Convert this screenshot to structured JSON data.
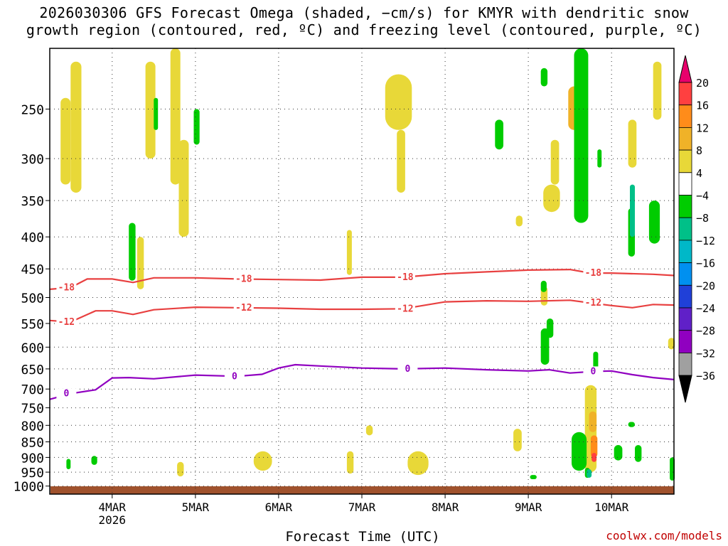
{
  "title": "2026030306 GFS Forecast Omega (shaded, −cm/s) for KMYR with dendritic snow\ngrowth region (contoured, red, ºC) and freezing level (contoured, purple, ºC)",
  "credit": "coolwx.com/models",
  "chart_data": {
    "type": "heatmap",
    "title": "2026030306 GFS Forecast Omega (shaded, −cm/s) for KMYR with dendritic snow growth region (contoured, red, ºC) and freezing level (contoured, purple, ºC)",
    "xlabel": "Forecast Time (UTC)",
    "ylabel": "",
    "x_ticks": [
      "4MAR",
      "5MAR",
      "6MAR",
      "7MAR",
      "8MAR",
      "9MAR",
      "10MAR"
    ],
    "x_tick_sublabel": "2026",
    "x_range_days": [
      3.25,
      10.75
    ],
    "y_ticks": [
      250,
      300,
      350,
      400,
      450,
      500,
      550,
      600,
      650,
      700,
      750,
      800,
      850,
      900,
      950,
      1000
    ],
    "y_range_hpa": [
      1030,
      200
    ],
    "grid": "dotted",
    "colorbar": {
      "ticks": [
        "20",
        "16",
        "12",
        "8",
        "4",
        "−4",
        "−8",
        "−12",
        "−16",
        "−20",
        "−24",
        "−28",
        "−32",
        "−36"
      ],
      "colors": [
        "#e8006c",
        "#ff4040",
        "#ff8c1a",
        "#f0b228",
        "#e8d838",
        "#ffffff",
        "#00cc00",
        "#00c088",
        "#00b8c8",
        "#0090f0",
        "#2040d8",
        "#6020c8",
        "#9000c0",
        "#a0a0a0",
        "#000000"
      ]
    },
    "contours": {
      "dgz_minus18": {
        "label": "-18",
        "color": "#e84040",
        "points": [
          [
            3.25,
            485
          ],
          [
            3.5,
            482
          ],
          [
            3.7,
            467
          ],
          [
            4.0,
            467
          ],
          [
            4.25,
            473
          ],
          [
            4.5,
            465
          ],
          [
            5.0,
            465
          ],
          [
            5.5,
            467
          ],
          [
            6.0,
            468
          ],
          [
            6.5,
            469
          ],
          [
            7.0,
            464
          ],
          [
            7.5,
            464
          ],
          [
            8.0,
            458
          ],
          [
            8.5,
            455
          ],
          [
            9.0,
            452
          ],
          [
            9.5,
            451
          ],
          [
            9.75,
            457
          ],
          [
            10.0,
            457
          ],
          [
            10.5,
            459
          ],
          [
            10.75,
            461
          ]
        ]
      },
      "dgz_minus12": {
        "label": "-12",
        "color": "#e84040",
        "points": [
          [
            3.25,
            544
          ],
          [
            3.5,
            547
          ],
          [
            3.8,
            525
          ],
          [
            4.0,
            525
          ],
          [
            4.25,
            532
          ],
          [
            4.5,
            523
          ],
          [
            5.0,
            518
          ],
          [
            5.5,
            519
          ],
          [
            6.0,
            520
          ],
          [
            6.5,
            522
          ],
          [
            7.0,
            522
          ],
          [
            7.5,
            521
          ],
          [
            8.0,
            508
          ],
          [
            8.5,
            506
          ],
          [
            9.0,
            507
          ],
          [
            9.5,
            505
          ],
          [
            9.75,
            510
          ],
          [
            10.0,
            515
          ],
          [
            10.25,
            519
          ],
          [
            10.5,
            513
          ],
          [
            10.75,
            514
          ]
        ]
      },
      "freezing_level": {
        "label": "0",
        "color": "#9000c0",
        "points": [
          [
            3.25,
            727
          ],
          [
            3.5,
            712
          ],
          [
            3.8,
            702
          ],
          [
            4.0,
            672
          ],
          [
            4.2,
            671
          ],
          [
            4.5,
            674
          ],
          [
            5.0,
            665
          ],
          [
            5.5,
            668
          ],
          [
            5.8,
            663
          ],
          [
            6.0,
            648
          ],
          [
            6.2,
            640
          ],
          [
            6.5,
            643
          ],
          [
            7.0,
            648
          ],
          [
            7.5,
            650
          ],
          [
            8.0,
            648
          ],
          [
            8.5,
            652
          ],
          [
            9.0,
            655
          ],
          [
            9.25,
            652
          ],
          [
            9.5,
            660
          ],
          [
            9.8,
            656
          ],
          [
            10.0,
            655
          ],
          [
            10.25,
            664
          ],
          [
            10.5,
            671
          ],
          [
            10.75,
            676
          ]
        ]
      }
    },
    "shaded_regions": [
      {
        "level": "4",
        "t0": 3.38,
        "t1": 3.5,
        "p0": 240,
        "p1": 330
      },
      {
        "level": "4",
        "t0": 3.5,
        "t1": 3.63,
        "p0": 210,
        "p1": 340
      },
      {
        "level": "4",
        "t0": 4.4,
        "t1": 4.52,
        "p0": 210,
        "p1": 300
      },
      {
        "level": "4",
        "t0": 4.7,
        "t1": 4.82,
        "p0": 200,
        "p1": 330
      },
      {
        "level": "4",
        "t0": 4.8,
        "t1": 4.92,
        "p0": 280,
        "p1": 400
      },
      {
        "level": "4",
        "t0": 4.3,
        "t1": 4.38,
        "p0": 400,
        "p1": 485
      },
      {
        "level": "4",
        "t0": 6.82,
        "t1": 6.88,
        "p0": 390,
        "p1": 460
      },
      {
        "level": "4",
        "t0": 7.28,
        "t1": 7.6,
        "p0": 220,
        "p1": 270
      },
      {
        "level": "4",
        "t0": 7.42,
        "t1": 7.52,
        "p0": 270,
        "p1": 340
      },
      {
        "level": "4",
        "t0": 9.18,
        "t1": 9.38,
        "p0": 330,
        "p1": 365
      },
      {
        "level": "4",
        "t0": 9.27,
        "t1": 9.37,
        "p0": 280,
        "p1": 330
      },
      {
        "level": "4",
        "t0": 8.85,
        "t1": 8.93,
        "p0": 370,
        "p1": 385
      },
      {
        "level": "4",
        "t0": 10.2,
        "t1": 10.3,
        "p0": 260,
        "p1": 310
      },
      {
        "level": "4",
        "t0": 10.5,
        "t1": 10.6,
        "p0": 210,
        "p1": 260
      },
      {
        "level": "4",
        "t0": 10.68,
        "t1": 10.76,
        "p0": 580,
        "p1": 605
      },
      {
        "level": "4",
        "t0": 5.7,
        "t1": 5.92,
        "p0": 880,
        "p1": 945
      },
      {
        "level": "4",
        "t0": 7.55,
        "t1": 7.8,
        "p0": 880,
        "p1": 960
      },
      {
        "level": "4",
        "t0": 4.78,
        "t1": 4.86,
        "p0": 915,
        "p1": 965
      },
      {
        "level": "4",
        "t0": 6.82,
        "t1": 6.9,
        "p0": 880,
        "p1": 955
      },
      {
        "level": "4",
        "t0": 7.05,
        "t1": 7.13,
        "p0": 800,
        "p1": 830
      },
      {
        "level": "4",
        "t0": 8.82,
        "t1": 8.92,
        "p0": 810,
        "p1": 880
      },
      {
        "level": "4",
        "t0": 9.68,
        "t1": 9.82,
        "p0": 690,
        "p1": 950
      },
      {
        "level": "4",
        "t0": 9.72,
        "t1": 9.8,
        "p0": 500,
        "p1": 515
      },
      {
        "level": "4",
        "t0": 9.15,
        "t1": 9.23,
        "p0": 480,
        "p1": 515
      },
      {
        "level": "8",
        "t0": 9.48,
        "t1": 9.62,
        "p0": 230,
        "p1": 270
      },
      {
        "level": "8",
        "t0": 9.73,
        "t1": 9.82,
        "p0": 760,
        "p1": 820
      },
      {
        "level": "12",
        "t0": 9.75,
        "t1": 9.83,
        "p0": 830,
        "p1": 900
      },
      {
        "level": "16",
        "t0": 9.76,
        "t1": 9.82,
        "p0": 885,
        "p1": 915
      },
      {
        "level": "-4",
        "t0": 4.2,
        "t1": 4.28,
        "p0": 380,
        "p1": 470
      },
      {
        "level": "-4",
        "t0": 4.5,
        "t1": 4.55,
        "p0": 240,
        "p1": 270
      },
      {
        "level": "-4",
        "t0": 4.98,
        "t1": 5.05,
        "p0": 250,
        "p1": 285
      },
      {
        "level": "-4",
        "t0": 8.6,
        "t1": 8.7,
        "p0": 260,
        "p1": 290
      },
      {
        "level": "-4",
        "t0": 9.15,
        "t1": 9.23,
        "p0": 215,
        "p1": 230
      },
      {
        "level": "-4",
        "t0": 9.55,
        "t1": 9.72,
        "p0": 200,
        "p1": 380
      },
      {
        "level": "-4",
        "t0": 10.2,
        "t1": 10.28,
        "p0": 360,
        "p1": 430
      },
      {
        "level": "-4",
        "t0": 10.45,
        "t1": 10.58,
        "p0": 350,
        "p1": 410
      },
      {
        "level": "-4",
        "t0": 9.83,
        "t1": 9.88,
        "p0": 290,
        "p1": 310
      },
      {
        "level": "-4",
        "t0": 9.15,
        "t1": 9.22,
        "p0": 470,
        "p1": 490
      },
      {
        "level": "-4",
        "t0": 9.15,
        "t1": 9.25,
        "p0": 560,
        "p1": 640
      },
      {
        "level": "-4",
        "t0": 9.52,
        "t1": 9.7,
        "p0": 820,
        "p1": 945
      },
      {
        "level": "-4",
        "t0": 9.78,
        "t1": 9.84,
        "p0": 610,
        "p1": 650
      },
      {
        "level": "-4",
        "t0": 9.68,
        "t1": 9.74,
        "p0": 935,
        "p1": 970
      },
      {
        "level": "-4",
        "t0": 9.22,
        "t1": 9.3,
        "p0": 540,
        "p1": 580
      },
      {
        "level": "-4",
        "t0": 10.03,
        "t1": 10.13,
        "p0": 860,
        "p1": 910
      },
      {
        "level": "-4",
        "t0": 10.2,
        "t1": 10.28,
        "p0": 790,
        "p1": 805
      },
      {
        "level": "-4",
        "t0": 10.28,
        "t1": 10.36,
        "p0": 860,
        "p1": 915
      },
      {
        "level": "-4",
        "t0": 10.7,
        "t1": 10.76,
        "p0": 900,
        "p1": 980
      },
      {
        "level": "-4",
        "t0": 9.02,
        "t1": 9.1,
        "p0": 960,
        "p1": 975
      },
      {
        "level": "-4",
        "t0": 3.45,
        "t1": 3.5,
        "p0": 905,
        "p1": 940
      },
      {
        "level": "-4",
        "t0": 3.75,
        "t1": 3.82,
        "p0": 895,
        "p1": 925
      },
      {
        "level": "-8",
        "t0": 10.22,
        "t1": 10.28,
        "p0": 330,
        "p1": 400
      },
      {
        "level": "-8",
        "t0": 9.7,
        "t1": 9.76,
        "p0": 940,
        "p1": 970
      }
    ]
  }
}
